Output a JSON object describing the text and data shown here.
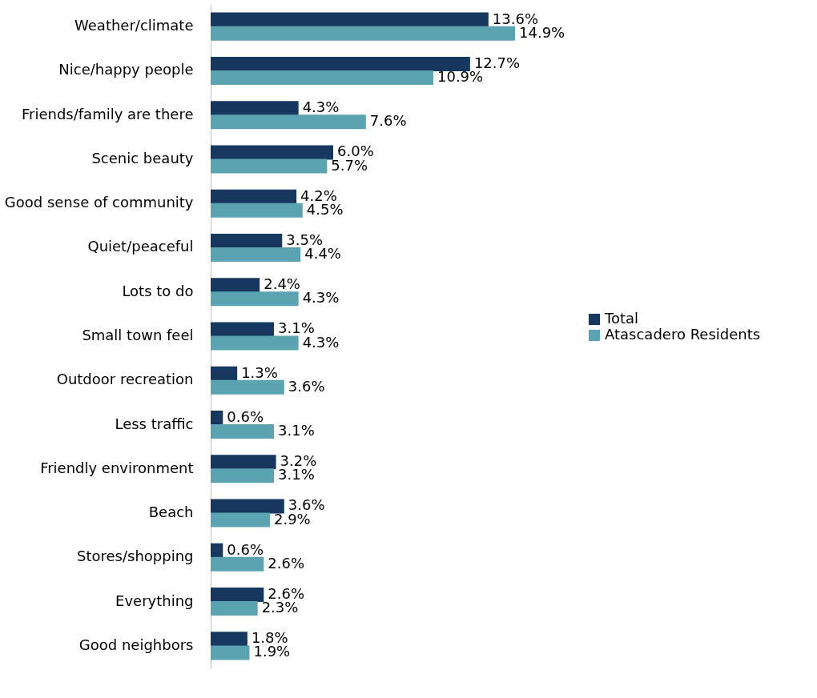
{
  "chart_data": {
    "type": "bar",
    "orientation": "horizontal",
    "legend": "right",
    "categories": [
      "Weather/climate",
      "Nice/happy people",
      "Friends/family are there",
      "Scenic beauty",
      "Good sense of community",
      "Quiet/peaceful",
      "Lots to do",
      "Small town feel",
      "Outdoor recreation",
      "Less traffic",
      "Friendly environment",
      "Beach",
      "Stores/shopping",
      "Everything",
      "Good neighbors"
    ],
    "series": [
      {
        "name": "Total",
        "color": "#17375e",
        "values": [
          13.6,
          12.7,
          4.3,
          6.0,
          4.2,
          3.5,
          2.4,
          3.1,
          1.3,
          0.6,
          3.2,
          3.6,
          0.6,
          2.6,
          1.8
        ],
        "value_labels": [
          "13.6%",
          "12.7%",
          "4.3%",
          "6.0%",
          "4.2%",
          "3.5%",
          "2.4%",
          "3.1%",
          "1.3%",
          "0.6%",
          "3.2%",
          "3.6%",
          "0.6%",
          "2.6%",
          "1.8%"
        ]
      },
      {
        "name": "Atascadero Residents",
        "color": "#5ba3b0",
        "values": [
          14.9,
          10.9,
          7.6,
          5.7,
          4.5,
          4.4,
          4.3,
          4.3,
          3.6,
          3.1,
          3.1,
          2.9,
          2.6,
          2.3,
          1.9
        ],
        "value_labels": [
          "14.9%",
          "10.9%",
          "7.6%",
          "5.7%",
          "4.5%",
          "4.4%",
          "4.3%",
          "4.3%",
          "3.6%",
          "3.1%",
          "3.1%",
          "2.9%",
          "2.6%",
          "2.3%",
          "1.9%"
        ]
      }
    ]
  }
}
